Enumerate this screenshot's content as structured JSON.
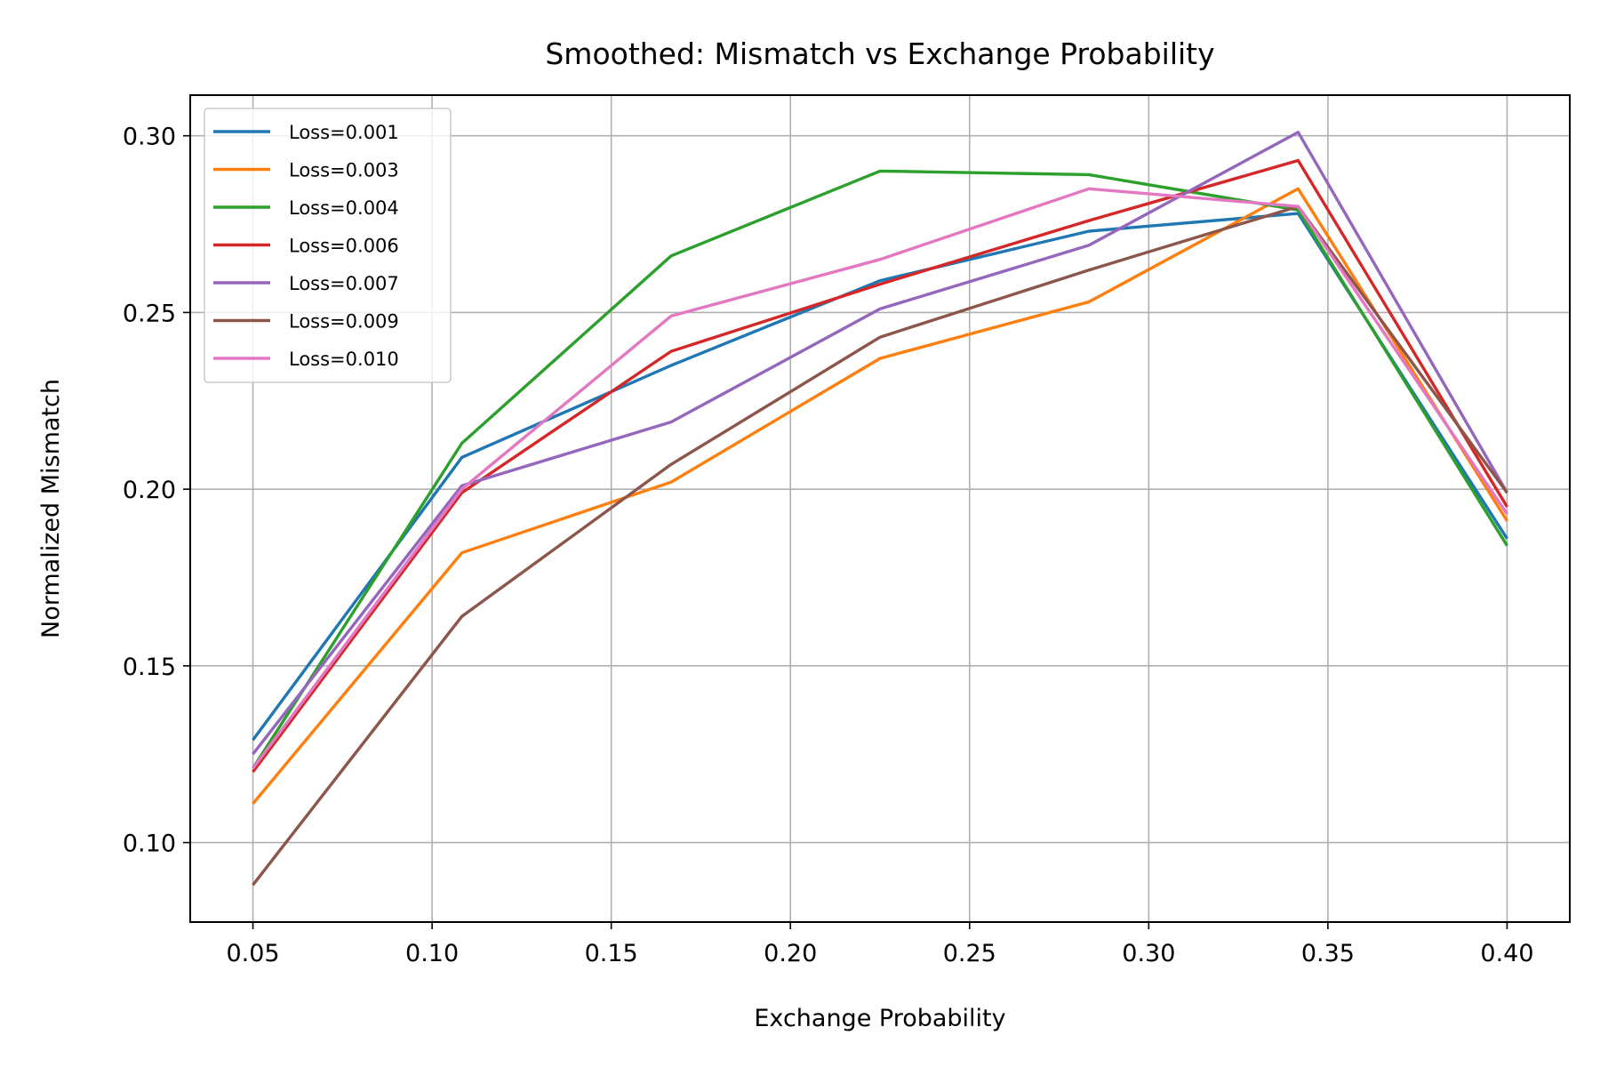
{
  "chart_data": {
    "type": "line",
    "title": "Smoothed: Mismatch vs Exchange Probability",
    "xlabel": "Exchange Probability",
    "ylabel": "Normalized Mismatch",
    "xlim": [
      0.0325,
      0.4175
    ],
    "ylim": [
      0.0775,
      0.3115
    ],
    "xticks": [
      0.05,
      0.1,
      0.15,
      0.2,
      0.25,
      0.3,
      0.35,
      0.4
    ],
    "xtick_labels": [
      "0.05",
      "0.10",
      "0.15",
      "0.20",
      "0.25",
      "0.30",
      "0.35",
      "0.40"
    ],
    "yticks": [
      0.1,
      0.15,
      0.2,
      0.25,
      0.3
    ],
    "ytick_labels": [
      "0.10",
      "0.15",
      "0.20",
      "0.25",
      "0.30"
    ],
    "grid": true,
    "legend_position": "upper-left",
    "x": [
      0.05,
      0.1083,
      0.1667,
      0.225,
      0.2833,
      0.3417,
      0.4
    ],
    "series": [
      {
        "name": "Loss=0.001",
        "color": "#1f77b4",
        "values": [
          0.129,
          0.209,
          0.235,
          0.259,
          0.273,
          0.278,
          0.186
        ]
      },
      {
        "name": "Loss=0.003",
        "color": "#ff7f0e",
        "values": [
          0.111,
          0.182,
          0.202,
          0.237,
          0.253,
          0.285,
          0.191
        ]
      },
      {
        "name": "Loss=0.004",
        "color": "#2ca02c",
        "values": [
          0.121,
          0.213,
          0.266,
          0.29,
          0.289,
          0.279,
          0.184
        ]
      },
      {
        "name": "Loss=0.006",
        "color": "#d62728",
        "values": [
          0.12,
          0.199,
          0.239,
          0.258,
          0.276,
          0.293,
          0.195
        ]
      },
      {
        "name": "Loss=0.007",
        "color": "#9467bd",
        "values": [
          0.125,
          0.201,
          0.219,
          0.251,
          0.269,
          0.301,
          0.199
        ]
      },
      {
        "name": "Loss=0.009",
        "color": "#8c564b",
        "values": [
          0.088,
          0.164,
          0.207,
          0.243,
          0.262,
          0.28,
          0.199
        ]
      },
      {
        "name": "Loss=0.010",
        "color": "#e377c2",
        "values": [
          0.121,
          0.2,
          0.249,
          0.265,
          0.285,
          0.28,
          0.193
        ]
      }
    ]
  }
}
